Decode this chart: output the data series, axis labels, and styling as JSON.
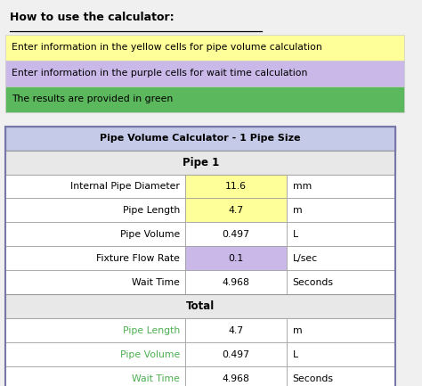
{
  "title_text": "How to use the calculator:",
  "instruction_rows": [
    {
      "text": "Enter information in the yellow cells for pipe volume calculation",
      "bg": "#FFFF99"
    },
    {
      "text": "Enter information in the purple cells for wait time calculation",
      "bg": "#C9B8E8"
    },
    {
      "text": "The results are provided in green",
      "bg": "#5CB85C"
    }
  ],
  "table_title": "Pipe Volume Calculator - 1 Pipe Size",
  "table_title_bg": "#C5CAE9",
  "pipe_header": "Pipe 1",
  "pipe_header_bg": "#E8E8E8",
  "rows": [
    {
      "label": "Internal Pipe Diameter",
      "value": "11.6",
      "unit": "mm",
      "value_bg": "#FFFF99"
    },
    {
      "label": "Pipe Length",
      "value": "4.7",
      "unit": "m",
      "value_bg": "#FFFF99"
    },
    {
      "label": "Pipe Volume",
      "value": "0.497",
      "unit": "L",
      "value_bg": "#FFFFFF"
    },
    {
      "label": "Fixture Flow Rate",
      "value": "0.1",
      "unit": "L/sec",
      "value_bg": "#C9B8E8"
    },
    {
      "label": "Wait Time",
      "value": "4.968",
      "unit": "Seconds",
      "value_bg": "#FFFFFF"
    }
  ],
  "total_header": "Total",
  "total_header_bg": "#E8E8E8",
  "total_rows": [
    {
      "label": "Pipe Length",
      "value": "4.7",
      "unit": "m",
      "label_color": "#4CAF50"
    },
    {
      "label": "Pipe Volume",
      "value": "0.497",
      "unit": "L",
      "label_color": "#4CAF50"
    },
    {
      "label": "Wait Time",
      "value": "4.968",
      "unit": "Seconds",
      "label_color": "#4CAF50"
    }
  ],
  "fig_bg": "#F0F0F0"
}
